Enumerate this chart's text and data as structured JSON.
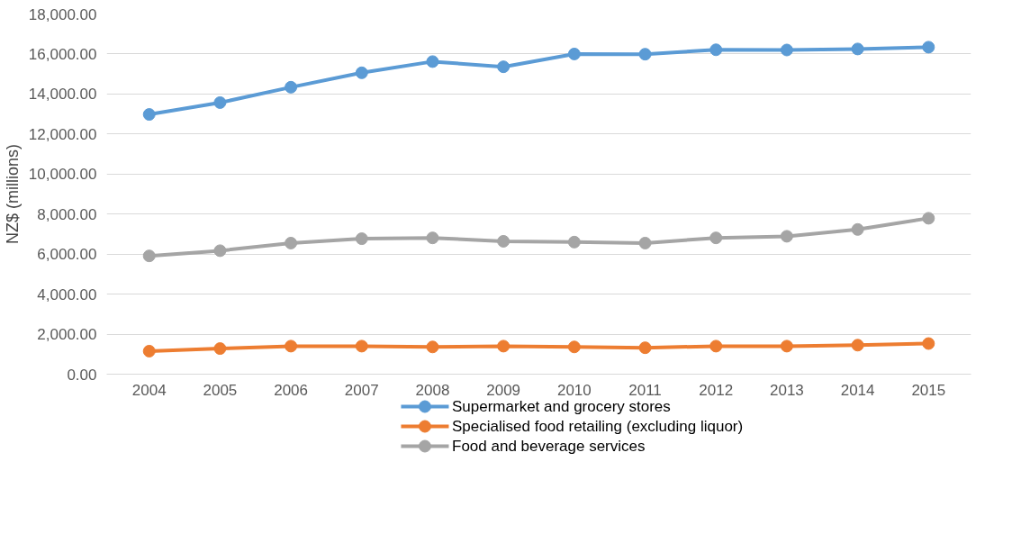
{
  "chart_data": {
    "type": "line",
    "ylabel": "NZ$ (millions)",
    "categories": [
      "2004",
      "2005",
      "2006",
      "2007",
      "2008",
      "2009",
      "2010",
      "2011",
      "2012",
      "2013",
      "2014",
      "2015"
    ],
    "series": [
      {
        "name": "Supermarket and grocery stores",
        "color": "#5b9bd5",
        "values": [
          12980,
          13570,
          14340,
          15060,
          15620,
          15360,
          16000,
          15990,
          16210,
          16200,
          16250,
          16340
        ]
      },
      {
        "name": "Specialised food retailing (excluding liquor)",
        "color": "#ed7d31",
        "values": [
          1150,
          1280,
          1400,
          1400,
          1360,
          1400,
          1360,
          1320,
          1400,
          1400,
          1450,
          1530
        ]
      },
      {
        "name": "Food and beverage services",
        "color": "#a5a5a5",
        "values": [
          5910,
          6170,
          6550,
          6770,
          6810,
          6640,
          6600,
          6550,
          6810,
          6890,
          7230,
          7790
        ]
      }
    ],
    "ylim": [
      0,
      18000
    ],
    "yticks": [
      {
        "value": 0,
        "label": "0.00"
      },
      {
        "value": 2000,
        "label": "2,000.00"
      },
      {
        "value": 4000,
        "label": "4,000.00"
      },
      {
        "value": 6000,
        "label": "6,000.00"
      },
      {
        "value": 8000,
        "label": "8,000.00"
      },
      {
        "value": 10000,
        "label": "10,000.00"
      },
      {
        "value": 12000,
        "label": "12,000.00"
      },
      {
        "value": 14000,
        "label": "14,000.00"
      },
      {
        "value": 16000,
        "label": "16,000.00"
      },
      {
        "value": 18000,
        "label": "18,000.00"
      }
    ],
    "grid": "y",
    "legend": "bottom",
    "marker": "circle",
    "line_style": "solid"
  }
}
